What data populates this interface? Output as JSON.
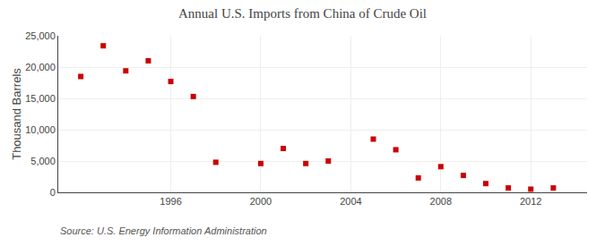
{
  "chart_data": {
    "type": "scatter",
    "title": "Annual U.S. Imports from China of Crude Oil",
    "ylabel": "Thousand Barrels",
    "annotations": [
      "Source: U.S. Energy Information Administration"
    ],
    "x": [
      1992,
      1993,
      1994,
      1995,
      1996,
      1997,
      1998,
      2000,
      2001,
      2002,
      2003,
      2005,
      2006,
      2007,
      2008,
      2009,
      2010,
      2011,
      2012,
      2013
    ],
    "values": [
      18500,
      23400,
      19400,
      21000,
      17700,
      15300,
      4800,
      4600,
      7000,
      4600,
      5000,
      8500,
      6800,
      2300,
      4100,
      2700,
      1400,
      700,
      500,
      700
    ],
    "color": "#cc0000",
    "marker": "square",
    "xlim": [
      1991,
      2014.5
    ],
    "xticks": [
      1996,
      2000,
      2004,
      2008,
      2012
    ],
    "ylim": [
      0,
      25000
    ],
    "yticks": [
      0,
      {
        "value": 5000,
        "label": "5,000"
      },
      {
        "value": 10000,
        "label": "10,000"
      },
      {
        "value": 15000,
        "label": "15,000"
      },
      {
        "value": 20000,
        "label": "20,000"
      },
      {
        "value": 25000,
        "label": "25,000"
      }
    ],
    "grid": true
  }
}
